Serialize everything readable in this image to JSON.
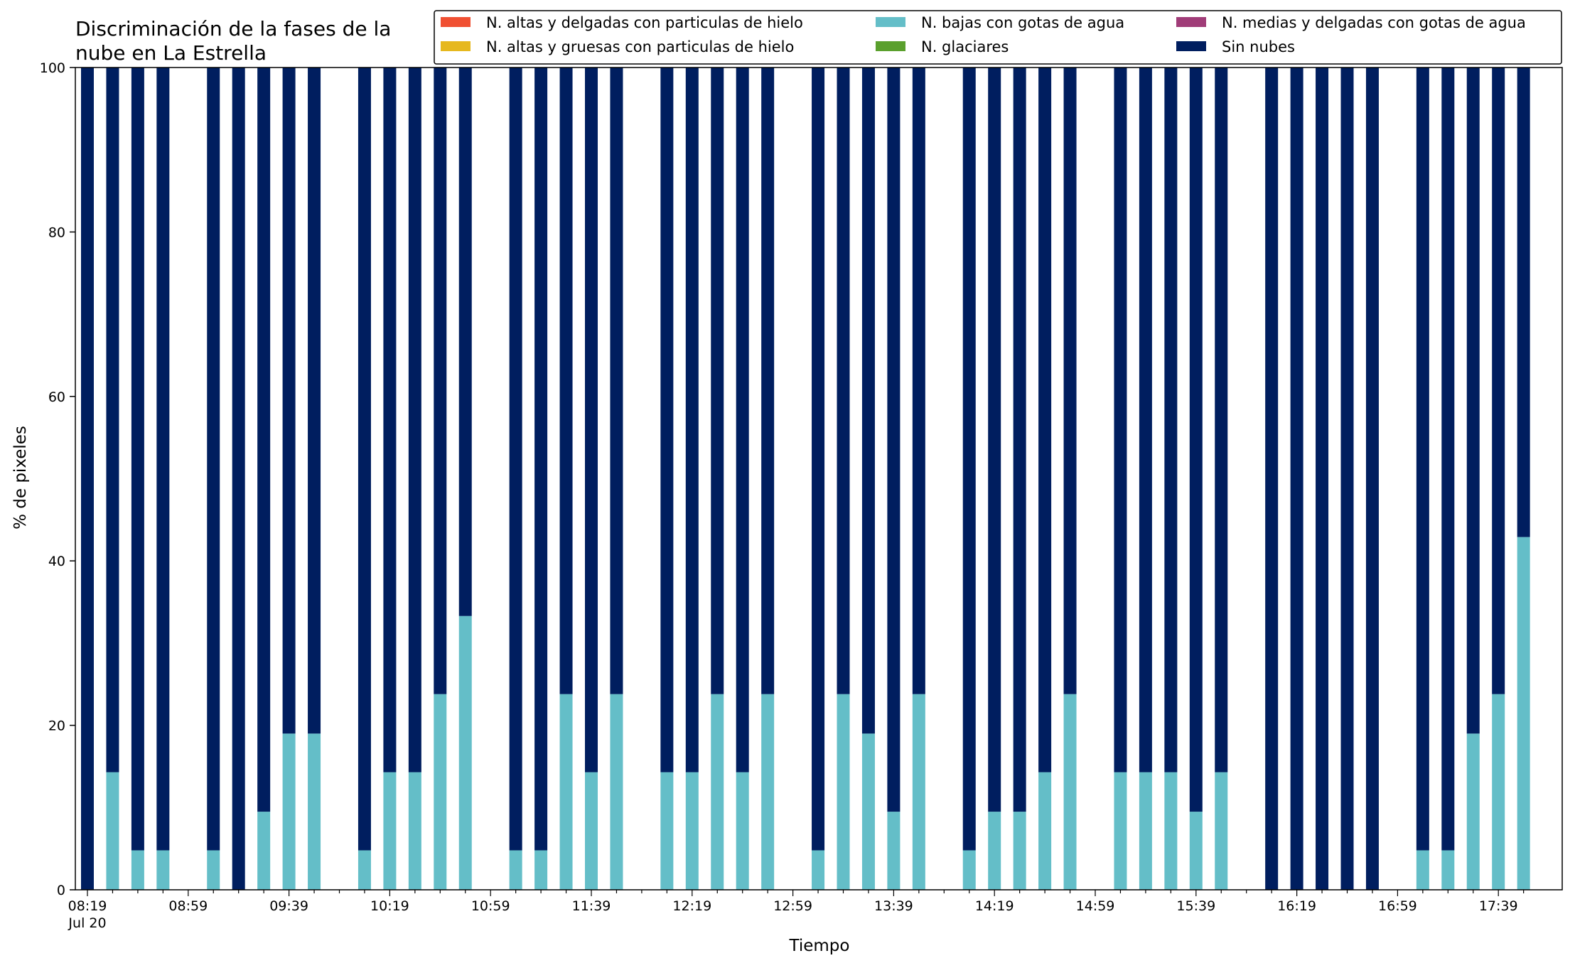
{
  "chart_data": {
    "type": "bar",
    "stacked": true,
    "title_lines": [
      "Discriminación de la fases de la",
      "nube en La Estrella"
    ],
    "xlabel": "Tiempo",
    "ylabel": "% de pixeles",
    "ylim": [
      0,
      100
    ],
    "yticks": [
      0,
      20,
      40,
      60,
      80,
      100
    ],
    "grid": false,
    "legend_position": "top-right",
    "x_tick_labels": [
      "08:19",
      "08:59",
      "09:39",
      "10:19",
      "10:59",
      "11:39",
      "12:19",
      "12:59",
      "13:39",
      "14:19",
      "14:59",
      "15:39",
      "16:19",
      "16:59",
      "17:39"
    ],
    "x_date_label": "Jul 20",
    "x_first": "08:19",
    "x_interval_minutes": 10,
    "legend_entries": [
      {
        "name": "N. altas y delgadas con particulas de hielo",
        "color": "#f05032"
      },
      {
        "name": "N. altas y gruesas con particulas de hielo",
        "color": "#e6b81e"
      },
      {
        "name": "N. bajas con gotas de agua",
        "color": "#64bec8"
      },
      {
        "name": "N. glaciares",
        "color": "#5aa02d"
      },
      {
        "name": "N. medias y delgadas con gotas de agua",
        "color": "#a03c78"
      },
      {
        "name": "Sin nubes",
        "color": "#001e5f"
      }
    ],
    "x": [
      "08:19",
      "08:29",
      "08:39",
      "08:49",
      "08:59",
      "09:09",
      "09:19",
      "09:29",
      "09:39",
      "09:49",
      "09:59",
      "10:09",
      "10:19",
      "10:29",
      "10:39",
      "10:49",
      "10:59",
      "11:09",
      "11:19",
      "11:29",
      "11:39",
      "11:49",
      "11:59",
      "12:09",
      "12:19",
      "12:29",
      "12:39",
      "12:49",
      "12:59",
      "13:09",
      "13:19",
      "13:29",
      "13:39",
      "13:49",
      "13:59",
      "14:09",
      "14:19",
      "14:29",
      "14:39",
      "14:49",
      "14:59",
      "15:09",
      "15:19",
      "15:29",
      "15:39",
      "15:49",
      "15:59",
      "16:09",
      "16:19",
      "16:29",
      "16:39",
      "16:49",
      "16:59",
      "17:09",
      "17:19",
      "17:29",
      "17:39",
      "17:49"
    ],
    "series": [
      {
        "name": "N. bajas con gotas de agua",
        "color": "#64bec8",
        "values": [
          0,
          14.3,
          4.8,
          4.8,
          null,
          4.8,
          0,
          9.5,
          19,
          19,
          null,
          4.8,
          14.3,
          14.3,
          23.8,
          33.3,
          null,
          4.8,
          4.8,
          23.8,
          14.3,
          23.8,
          null,
          14.3,
          14.3,
          23.8,
          14.3,
          23.8,
          null,
          4.8,
          23.8,
          19,
          9.5,
          23.8,
          null,
          4.8,
          9.5,
          9.5,
          14.3,
          23.8,
          null,
          14.3,
          14.3,
          14.3,
          9.5,
          14.3,
          null,
          0,
          0,
          0,
          0,
          0,
          null,
          4.8,
          4.8,
          19,
          23.8,
          42.9
        ]
      },
      {
        "name": "Sin nubes",
        "color": "#001e5f",
        "values": [
          100,
          85.7,
          95.2,
          95.2,
          null,
          95.2,
          100,
          90.5,
          81,
          81,
          null,
          95.2,
          85.7,
          85.7,
          76.2,
          66.7,
          null,
          95.2,
          95.2,
          76.2,
          85.7,
          76.2,
          null,
          85.7,
          85.7,
          76.2,
          85.7,
          76.2,
          null,
          95.2,
          76.2,
          81,
          90.5,
          76.2,
          null,
          95.2,
          90.5,
          90.5,
          85.7,
          76.2,
          null,
          85.7,
          85.7,
          85.7,
          90.5,
          85.7,
          null,
          100,
          100,
          100,
          100,
          100,
          null,
          95.2,
          95.2,
          81,
          76.2,
          57.1
        ]
      }
    ]
  }
}
